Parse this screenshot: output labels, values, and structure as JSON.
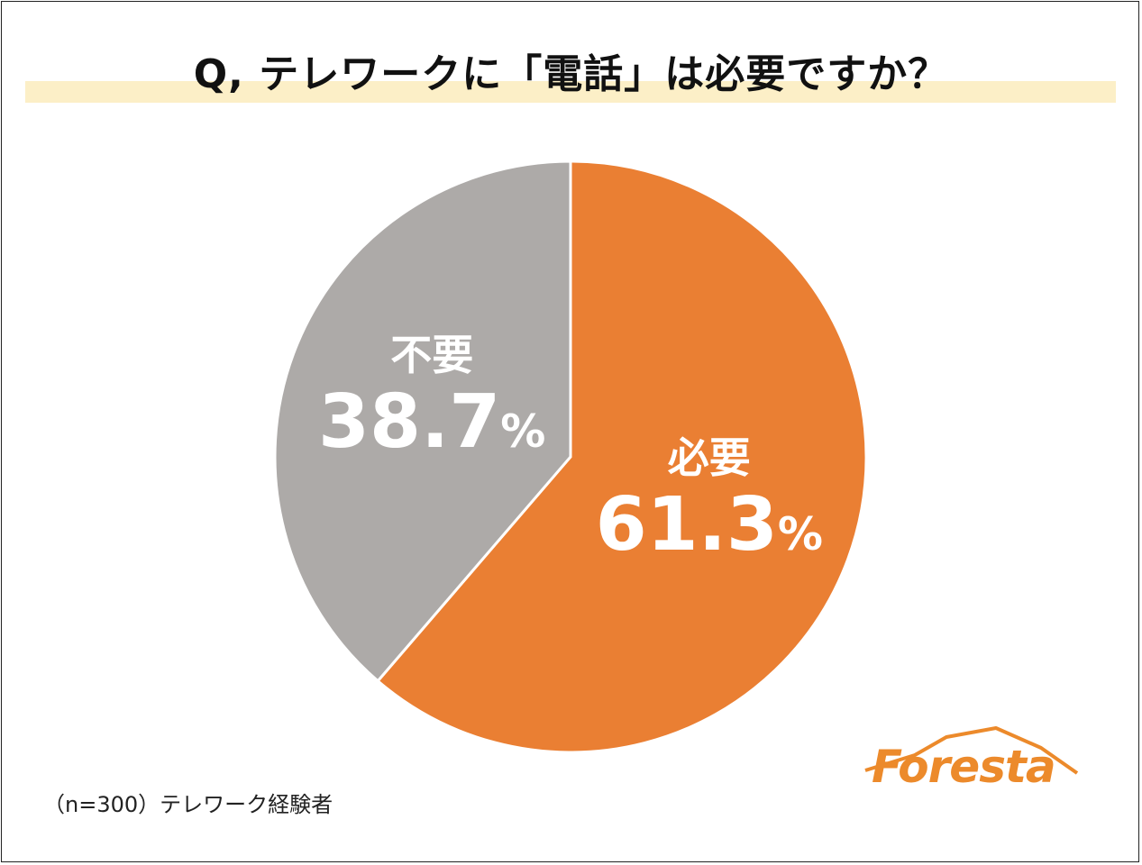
{
  "title": "Q, テレワークに「電話」は必要ですか？",
  "colors": {
    "title_band": "#fcefc7",
    "required": "#ea7f33",
    "not_required": "#adaaa8",
    "label_text": "#ffffff",
    "logo": "#ec8a2b"
  },
  "chart_data": {
    "type": "pie",
    "title": "Q, テレワークに「電話」は必要ですか？",
    "slices": [
      {
        "label": "必要",
        "value": 61.3,
        "display": "61.3",
        "unit": "%"
      },
      {
        "label": "不要",
        "value": 38.7,
        "display": "38.7",
        "unit": "%"
      }
    ],
    "start": "12 o'clock",
    "direction": "clockwise"
  },
  "footnote": "（n=300）テレワーク経験者",
  "logo_text": "Foresta"
}
